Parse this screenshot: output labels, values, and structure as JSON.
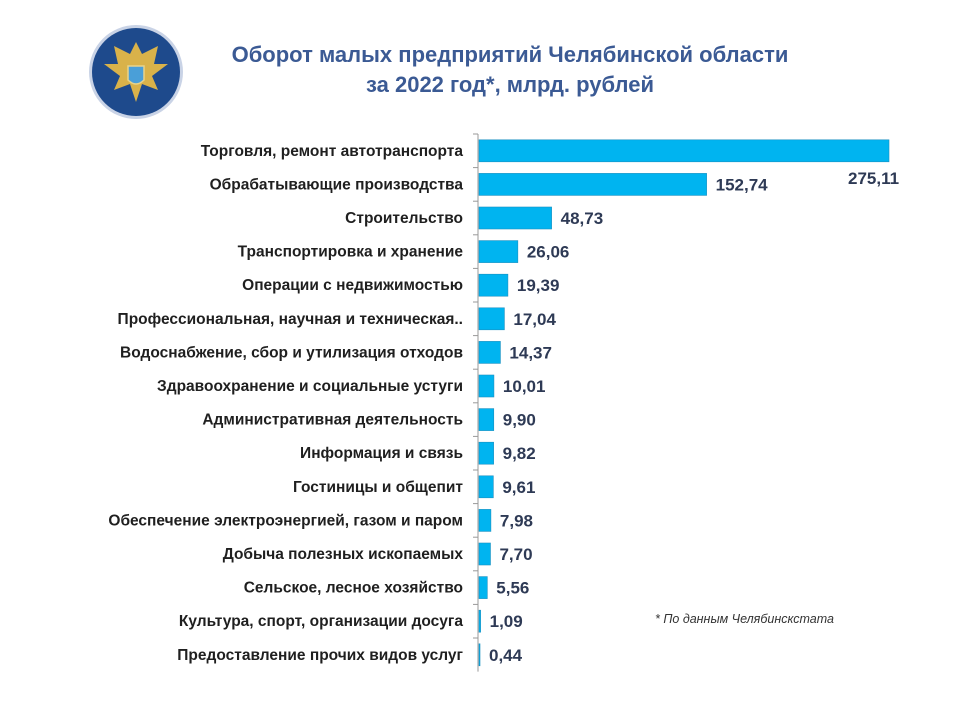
{
  "header": {
    "title_line1": "Оборот малых предприятий Челябинской области",
    "title_line2": "за 2022 год*, млрд. рублей",
    "logo_icon": "double-headed-eagle-emblem"
  },
  "footnote": "* По данным Челябинскстата",
  "colors": {
    "bar": "#00b4f0",
    "title": "#3b5a94",
    "logo_bg": "#1e4a8c",
    "logo_gold": "#d9b24a"
  },
  "chart_data": {
    "type": "bar",
    "orientation": "horizontal",
    "title": "Оборот малых предприятий Челябинской области за 2022 год*, млрд. рублей",
    "categories": [
      "Торговля, ремонт автотранспорта",
      "Обрабатывающие производства",
      "Строительство",
      "Транспортировка и хранение",
      "Операции с недвижимостью",
      "Профессиональная, научная и техническая..",
      "Водоснабжение, сбор и утилизация отходов",
      "Здравоохранение и социальные устуги",
      "Административная деятельность",
      "Информация и связь",
      "Гостиницы и общепит",
      "Обеспечение электроэнергией, газом и паром",
      "Добыча полезных ископаемых",
      "Сельское, лесное хозяйство",
      "Культура, спорт, организации досуга",
      "Предоставление прочих видов услуг"
    ],
    "values": [
      275.11,
      152.74,
      48.73,
      26.06,
      19.39,
      17.04,
      14.37,
      10.01,
      9.9,
      9.82,
      9.61,
      7.98,
      7.7,
      5.56,
      1.09,
      0.44
    ],
    "value_labels": [
      "275,11",
      "152,74",
      "48,73",
      "26,06",
      "19,39",
      "17,04",
      "14,37",
      "10,01",
      "9,90",
      "9,82",
      "9,61",
      "7,98",
      "7,70",
      "5,56",
      "1,09",
      "0,44"
    ],
    "xlim": [
      0,
      275.11
    ],
    "grid": false,
    "legend": "none"
  }
}
